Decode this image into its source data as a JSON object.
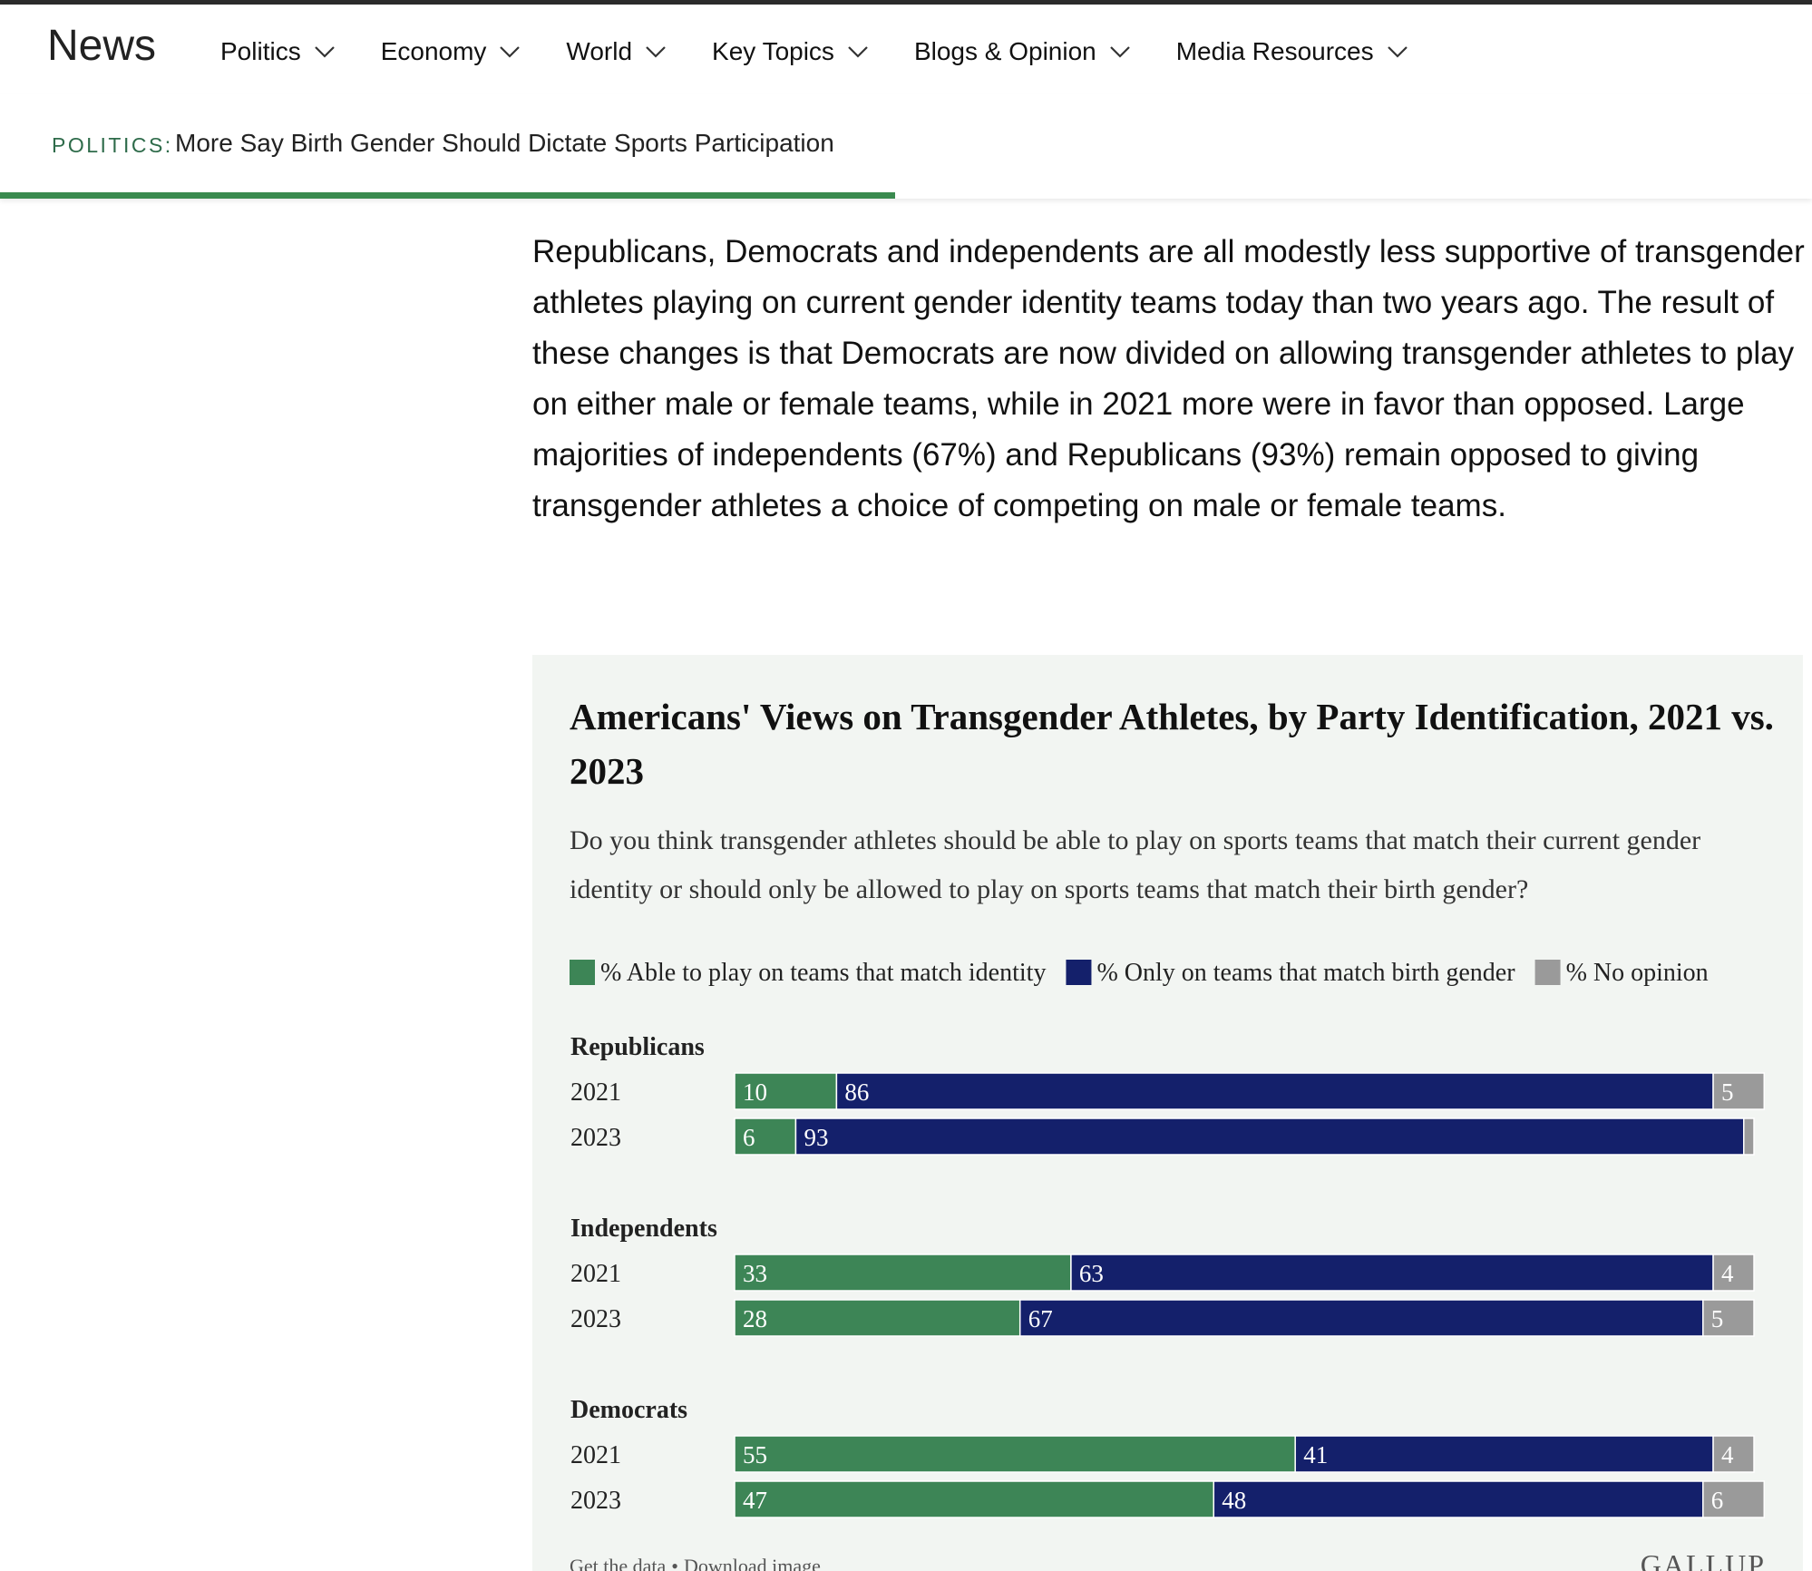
{
  "nav": {
    "brand": "News",
    "items": [
      "Politics",
      "Economy",
      "World",
      "Key Topics",
      "Blogs & Opinion",
      "Media Resources"
    ]
  },
  "breadcrumb": {
    "section": "POLITICS:",
    "title": "More Say Birth Gender Should Dictate Sports Participation"
  },
  "article": {
    "paragraph": "Republicans, Democrats and independents are all modestly less supportive of transgender athletes playing on current gender identity teams today than two years ago. The result of these changes is that Democrats are now divided on allowing transgender athletes to play on either male or female teams, while in 2021 more were in favor than opposed. Large majorities of independents (67%) and Republicans (93%) remain opposed to giving transgender athletes a choice of competing on male or female teams."
  },
  "chart_data": {
    "type": "stacked-bar-h",
    "title": "Americans' Views on Transgender Athletes, by Party Identification, 2021 vs. 2023",
    "subtitle": "Do you think transgender athletes should be able to play on sports teams that match their current gender identity or should only be allowed to play on sports teams that match their birth gender?",
    "groups": [
      {
        "name": "Republicans",
        "categories": [
          "2021",
          "2023"
        ]
      },
      {
        "name": "Independents",
        "categories": [
          "2021",
          "2023"
        ]
      },
      {
        "name": "Democrats",
        "categories": [
          "2021",
          "2023"
        ]
      }
    ],
    "xlim": [
      0,
      100
    ],
    "series": [
      {
        "name": "% Able to play on teams that match identity",
        "color": "#3d8556",
        "values": [
          10,
          6,
          33,
          28,
          55,
          47
        ]
      },
      {
        "name": "% Only on teams that match birth gender",
        "color": "#14206b",
        "values": [
          86,
          93,
          63,
          67,
          41,
          48
        ]
      },
      {
        "name": "% No opinion",
        "color": "#9a9a9a",
        "values": [
          5,
          1,
          4,
          5,
          4,
          6
        ],
        "value_labels": [
          "5",
          null,
          "4",
          "5",
          "4",
          "6"
        ]
      }
    ],
    "footer": {
      "links": [
        "Get the data",
        "Download image"
      ],
      "separator": "•",
      "brand": "GALLUP"
    }
  }
}
